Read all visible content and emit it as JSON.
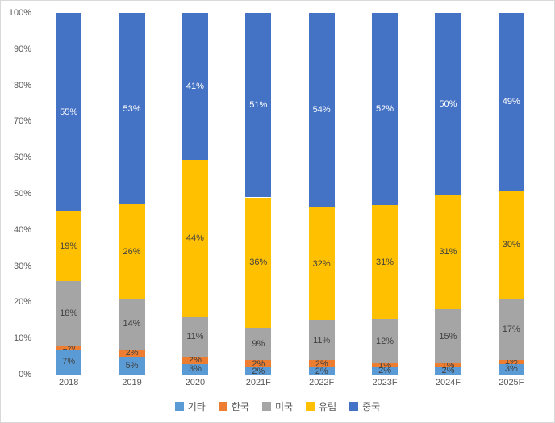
{
  "chart_data": {
    "type": "bar",
    "subtype": "stacked-100",
    "title": "",
    "xlabel": "",
    "ylabel": "",
    "grid": false,
    "legend_position": "bottom",
    "categories": [
      "2018",
      "2019",
      "2020",
      "2021F",
      "2022F",
      "2023F",
      "2024F",
      "2025F"
    ],
    "series": [
      {
        "name": "기타",
        "color": "#5B9BD5",
        "label_color": "#404040",
        "values": [
          7,
          5,
          3,
          2,
          2,
          2,
          2,
          3
        ]
      },
      {
        "name": "한국",
        "color": "#ED7D31",
        "label_color": "#404040",
        "values": [
          1,
          2,
          2,
          2,
          2,
          1,
          1,
          1
        ]
      },
      {
        "name": "미국",
        "color": "#A5A5A5",
        "label_color": "#404040",
        "values": [
          18,
          14,
          11,
          9,
          11,
          12,
          15,
          17
        ]
      },
      {
        "name": "유럽",
        "color": "#FFC000",
        "label_color": "#404040",
        "values": [
          19,
          26,
          44,
          36,
          32,
          31,
          31,
          30
        ]
      },
      {
        "name": "중국",
        "color": "#4472C4",
        "label_color": "#FFFFFF",
        "values": [
          55,
          53,
          41,
          51,
          54,
          52,
          50,
          49
        ]
      }
    ],
    "data_label_suffix": "%",
    "y_axis": {
      "min": 0,
      "max": 100,
      "tick_labels": [
        "100%",
        "90%",
        "80%",
        "70%",
        "60%",
        "50%",
        "40%",
        "30%",
        "20%",
        "10%",
        "0%"
      ]
    },
    "legend": [
      "기타",
      "한국",
      "미국",
      "유럽",
      "중국"
    ]
  },
  "style": {
    "axis_text_color": "#595959",
    "axis_line_color": "#D9D9D9",
    "border_color": "#D9D9D9",
    "background": "#FFFFFF"
  }
}
